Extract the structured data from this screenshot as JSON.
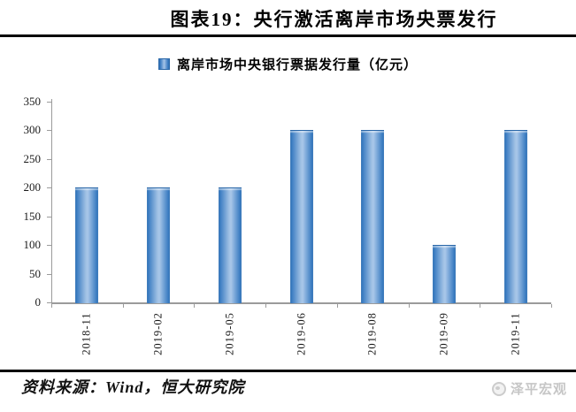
{
  "header": {
    "title": "图表19：央行激活离岸市场央票发行"
  },
  "legend": {
    "label": "离岸市场中央银行票据发行量（亿元）"
  },
  "chart_data": {
    "type": "bar",
    "title": "图表19：央行激活离岸市场央票发行",
    "legend_entries": [
      "离岸市场中央银行票据发行量（亿元）"
    ],
    "legend_position": "top",
    "categories": [
      "2018-11",
      "2019-02",
      "2019-05",
      "2019-06",
      "2019-08",
      "2019-09",
      "2019-11"
    ],
    "values": [
      200,
      200,
      200,
      300,
      300,
      100,
      300
    ],
    "xlabel": "",
    "ylabel": "",
    "ylim": [
      0,
      350
    ],
    "ytick_step": 50,
    "grid": false
  },
  "footer": {
    "source": "资料来源：Wind，恒大研究院",
    "brand": "泽平宏观"
  },
  "colors": {
    "bar_edge": "#2d6fb4",
    "bar_center": "#a9c7e9",
    "axis": "#9b9b9b",
    "title_text": "#000000",
    "brand_gray": "#c6c6c6"
  }
}
